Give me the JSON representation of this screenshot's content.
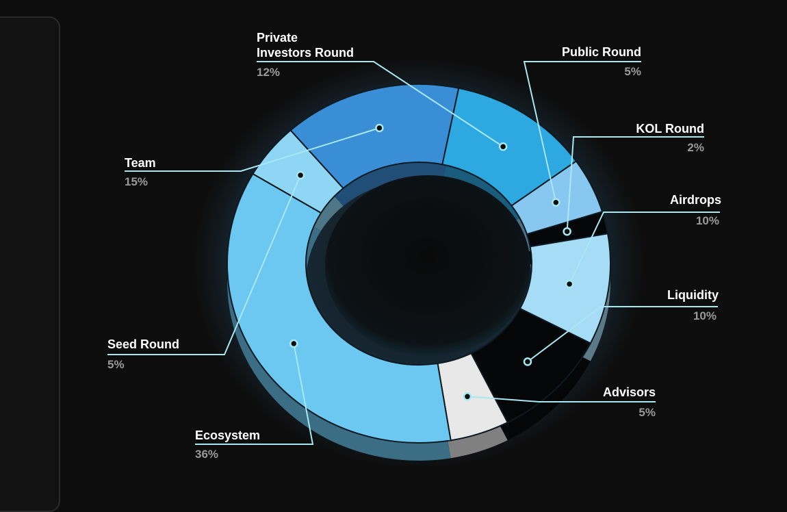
{
  "chart_data": {
    "type": "pie",
    "variant": "3d-donut",
    "slices": [
      {
        "label": "Private\nInvestors Round",
        "value_text": "12%",
        "value": 12,
        "color": "#2ea8e0"
      },
      {
        "label": "Public Round",
        "value_text": "5%",
        "value": 5,
        "color": "#88c8f0"
      },
      {
        "label": "KOL Round",
        "value_text": "2%",
        "value": 2,
        "color": "#050608"
      },
      {
        "label": "Airdrops",
        "value_text": "10%",
        "value": 10,
        "color": "#a6dcf6"
      },
      {
        "label": "Liquidity",
        "value_text": "10%",
        "value": 10,
        "color": "#050608"
      },
      {
        "label": "Advisors",
        "value_text": "5%",
        "value": 5,
        "color": "#e8e8e8"
      },
      {
        "label": "Ecosystem",
        "value_text": "36%",
        "value": 36,
        "color": "#6cc8f0"
      },
      {
        "label": "Seed Round",
        "value_text": "5%",
        "value": 5,
        "color": "#8ed6f4"
      },
      {
        "label": "Team",
        "value_text": "15%",
        "value": 15,
        "color": "#3a8ed6"
      }
    ],
    "accent_line_color": "#a9e8f2",
    "glow_color": "#4cb6ff"
  }
}
